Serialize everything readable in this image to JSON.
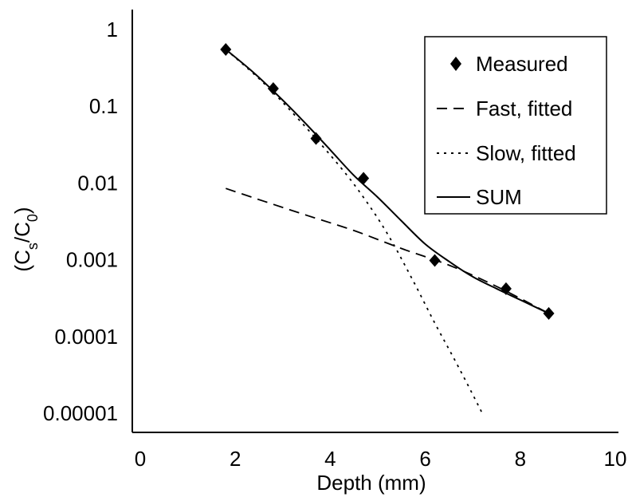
{
  "chart_data": {
    "type": "scatter",
    "title": "",
    "xlabel": "Depth (mm)",
    "ylabel": {
      "open": "(C",
      "sub1": "s",
      "mid": "/C",
      "sub2": "0",
      "close": ")"
    },
    "xlim": [
      0,
      10
    ],
    "ylim": [
      1e-05,
      1
    ],
    "yscale": "log",
    "x_ticks": [
      {
        "value": 0,
        "label": "0"
      },
      {
        "value": 2,
        "label": "2"
      },
      {
        "value": 4,
        "label": "4"
      },
      {
        "value": 6,
        "label": "6"
      },
      {
        "value": 8,
        "label": "8"
      },
      {
        "value": 10,
        "label": "10"
      }
    ],
    "y_ticks": [
      {
        "value": 1,
        "label": "1"
      },
      {
        "value": 0.1,
        "label": "0.1"
      },
      {
        "value": 0.01,
        "label": "0.01"
      },
      {
        "value": 0.001,
        "label": "0.001"
      },
      {
        "value": 0.0001,
        "label": "0.0001"
      },
      {
        "value": 1e-05,
        "label": "0.00001"
      }
    ],
    "grid": false,
    "legend_position": "top-right",
    "series": [
      {
        "name": "Measured",
        "style": "diamond-markers",
        "x": [
          1.8,
          2.8,
          3.7,
          4.7,
          6.2,
          7.7,
          8.6
        ],
        "y": [
          0.55,
          0.17,
          0.038,
          0.0115,
          0.00098,
          0.00042,
          0.0002
        ]
      },
      {
        "name": "Fast, fitted",
        "style": "dashed",
        "x": [
          1.8,
          2.6,
          3.5,
          4.5,
          5.5,
          6.5,
          7.5,
          8.6
        ],
        "y": [
          0.0085,
          0.0058,
          0.0038,
          0.0024,
          0.0014,
          0.00085,
          0.00045,
          0.0002
        ]
      },
      {
        "name": "Slow, fitted",
        "style": "dotted",
        "x": [
          1.8,
          2.6,
          3.4,
          4.2,
          4.7,
          5.2,
          5.7,
          6.2,
          6.7,
          7.2
        ],
        "y": [
          0.55,
          0.2,
          0.061,
          0.0165,
          0.0065,
          0.0022,
          0.0006,
          0.00015,
          4e-05,
          1e-05
        ]
      },
      {
        "name": "SUM",
        "style": "solid",
        "x": [
          1.8,
          2.4,
          3.0,
          3.5,
          4.0,
          4.5,
          5.0,
          5.5,
          6.0,
          6.5,
          7.0,
          7.5,
          8.0,
          8.6
        ],
        "y": [
          0.55,
          0.27,
          0.12,
          0.058,
          0.027,
          0.0125,
          0.0065,
          0.0032,
          0.0016,
          0.00095,
          0.0006,
          0.00042,
          0.0003,
          0.0002
        ]
      }
    ]
  }
}
